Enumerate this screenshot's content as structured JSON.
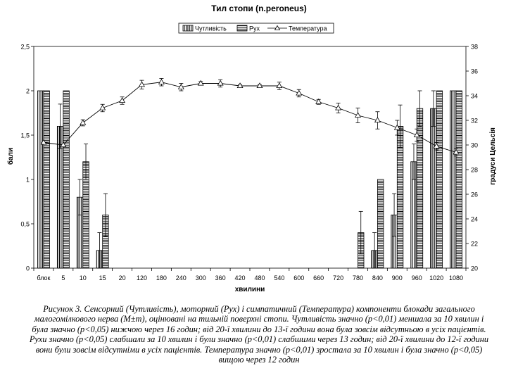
{
  "chart_data": {
    "type": "bar",
    "title": "Тил стопи (n.peroneus)",
    "xlabel": "хвилини",
    "ylabel": "бали",
    "y2label": "градуси Цельсія",
    "categories": [
      "блок",
      "5",
      "10",
      "15",
      "20",
      "120",
      "180",
      "240",
      "300",
      "360",
      "420",
      "480",
      "540",
      "600",
      "660",
      "720",
      "780",
      "840",
      "900",
      "960",
      "1020",
      "1080"
    ],
    "ylim": [
      0,
      2.5
    ],
    "yticks": [
      "0",
      "0,5",
      "1",
      "1,5",
      "2",
      "2,5"
    ],
    "y2lim": [
      20,
      38
    ],
    "y2ticks": [
      "20",
      "22",
      "24",
      "26",
      "28",
      "30",
      "32",
      "34",
      "36",
      "38"
    ],
    "legend": {
      "position": "top-center"
    },
    "series": [
      {
        "name": "Чутливість",
        "kind": "bar",
        "pattern": "vertical-stripes",
        "values": [
          2.0,
          1.6,
          0.8,
          0.2,
          0,
          0,
          0,
          0,
          0,
          0,
          0,
          0,
          0,
          0,
          0,
          0,
          0,
          0.2,
          0.6,
          1.2,
          1.8,
          2.0
        ],
        "errors": [
          0,
          0.25,
          0.2,
          0.2,
          0,
          0,
          0,
          0,
          0,
          0,
          0,
          0,
          0,
          0,
          0,
          0,
          0,
          0.2,
          0.24,
          0.2,
          0.2,
          0
        ]
      },
      {
        "name": "Рух",
        "kind": "bar",
        "pattern": "horizontal-stripes",
        "values": [
          2.0,
          2.0,
          1.2,
          0.6,
          0,
          0,
          0,
          0,
          0,
          0,
          0,
          0,
          0,
          0,
          0,
          0,
          0.4,
          1.0,
          1.6,
          1.8,
          2.0,
          2.0
        ],
        "errors": [
          0,
          0,
          0.2,
          0.24,
          0,
          0,
          0,
          0,
          0,
          0,
          0,
          0,
          0,
          0,
          0,
          0,
          0.24,
          0,
          0.24,
          0.2,
          0,
          0
        ]
      },
      {
        "name": "Температура",
        "kind": "line",
        "axis": "right",
        "marker": "triangle",
        "values": [
          30.2,
          30.0,
          31.8,
          33.0,
          33.6,
          34.9,
          35.1,
          34.7,
          35.0,
          35.0,
          34.8,
          34.8,
          34.8,
          34.2,
          33.5,
          33.0,
          32.4,
          32.0,
          31.4,
          30.8,
          29.9,
          29.4
        ],
        "errors": [
          0,
          0,
          0.25,
          0.3,
          0.3,
          0.35,
          0.3,
          0.3,
          0.15,
          0.3,
          0.1,
          0.1,
          0.3,
          0.3,
          0.2,
          0.4,
          0.6,
          0.7,
          0.6,
          0.5,
          0.3,
          0.3
        ]
      }
    ]
  },
  "caption": {
    "lines": [
      "Рисунок 3. Сенсорний (Чутливість), моторний (Рух) і симпатичний (Температура) компоненти блокади загального",
      "малогомілкового нерва (M±m), оцінювані на тильній поверхні стопи. Чутливість значно (p<0,01) меншала за 10 хвилин і",
      "була значно (p<0,05) нижчою через 16 годин; від 20-ї хвилини до 13-ї години вона була зовсім відсутньою в усіх пацієнтів.",
      "Рухи значно (p<0,05) слабшали за 10 хвилин і були значно (p<0,01) слабшими через 13 годин; від 20-ї хвилини до 12-ї години",
      "вони були зовсім відсутніми в усіх пацієнтів. Температура значно (p<0,01) зростала за 10 хвилин і була значно (p<0,05)",
      "вищою через 12 годин"
    ]
  }
}
